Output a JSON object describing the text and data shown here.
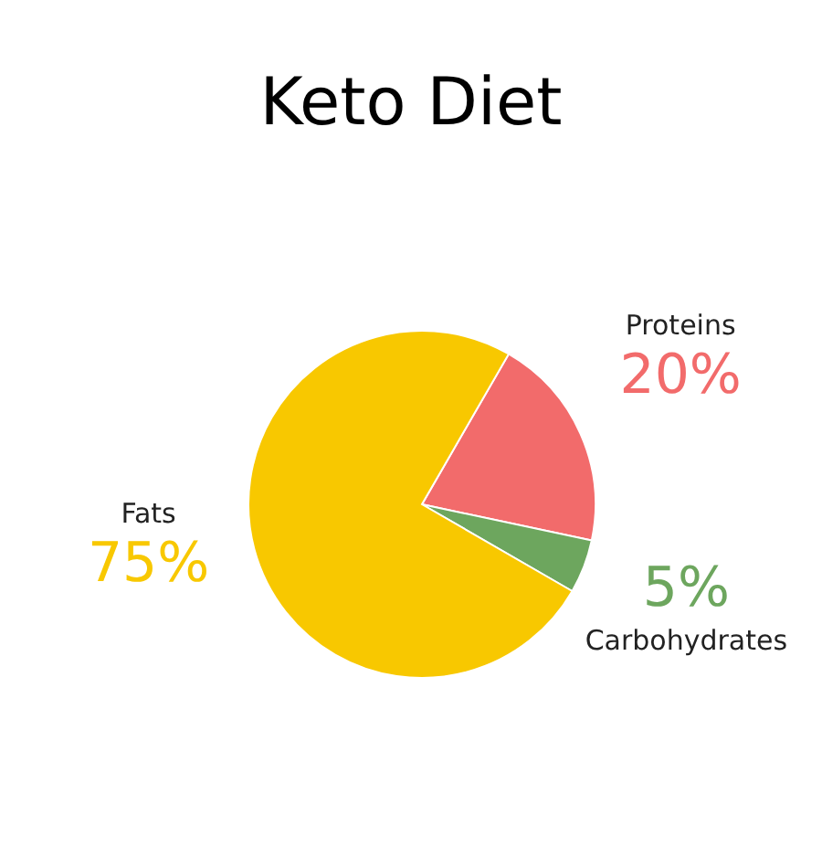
{
  "chart_data": {
    "type": "pie",
    "title": "Keto Diet",
    "categories": [
      "Proteins",
      "Carbohydrates",
      "Fats"
    ],
    "values": [
      20,
      5,
      75
    ],
    "value_labels": [
      "20%",
      "5%",
      "75%"
    ],
    "colors": [
      "#f26b6b",
      "#6da65e",
      "#f8c800"
    ]
  }
}
